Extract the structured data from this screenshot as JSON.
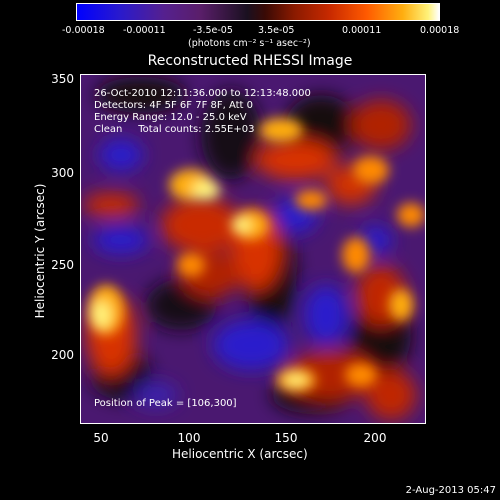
{
  "colorbar": {
    "ticks": [
      "-0.00018",
      "-0.00011",
      "-3.5e-05",
      "3.5e-05",
      "0.00011",
      "0.00018"
    ],
    "units": "(photons cm⁻² s⁻¹ asec⁻²)"
  },
  "plot": {
    "title": "Reconstructed RHESSI Image",
    "annotations": {
      "time_range": "26-Oct-2010 12:11:36.000 to 12:13:48.000",
      "detectors": "Detectors: 4F 5F 6F 7F 8F, Att 0",
      "energy": "Energy Range: 12.0 - 25.0 keV",
      "method": "Clean     Total counts: 2.55E+03",
      "peak": "Position of Peak = [106,300]"
    },
    "xlabel": "Heliocentric X (arcsec)",
    "ylabel": "Heliocentric Y (arcsec)",
    "xticks": [
      "50",
      "100",
      "150",
      "200"
    ],
    "yticks": [
      "350",
      "300",
      "250",
      "200"
    ]
  },
  "footer": {
    "date": "2-Aug-2013 05:47"
  },
  "colors": {
    "negative": "#2a1acc",
    "mid": "#5a1e6a",
    "warm": "#ff5a00",
    "hot": "#fff27a"
  }
}
